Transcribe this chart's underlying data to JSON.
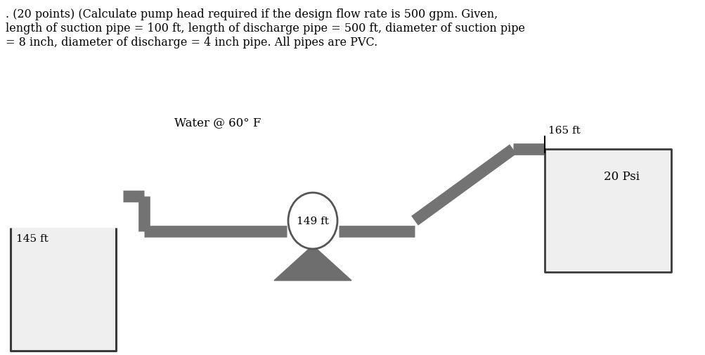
{
  "title_line1": ". (20 points) (Calculate pump head required if the design flow rate is 500 gpm. Given,",
  "title_line2": "length of suction pipe = 100 ft, length of discharge pipe = 500 ft, diameter of suction pipe",
  "title_line3": "= 8 inch, diameter of discharge = 4 inch pipe. All pipes are PVC.",
  "water_label": "Water @ 60° F",
  "pump_label": "149 ft",
  "left_tank_label": "145 ft",
  "right_tank_label": "165 ft",
  "right_pressure_label": "20 Psi",
  "pipe_color": "#737373",
  "pipe_linewidth": 12,
  "tank_fill_color": "#efefef",
  "tank_edge_color": "#3a3a3a",
  "pump_circle_facecolor": "#ffffff",
  "pump_circle_edgecolor": "#555555",
  "pump_triangle_color": "#6e6e6e",
  "background_color": "#ffffff",
  "text_color": "#000000",
  "figsize": [
    10.04,
    5.06
  ],
  "dpi": 100,
  "title_fontsize": 11.5,
  "label_fontsize": 11
}
